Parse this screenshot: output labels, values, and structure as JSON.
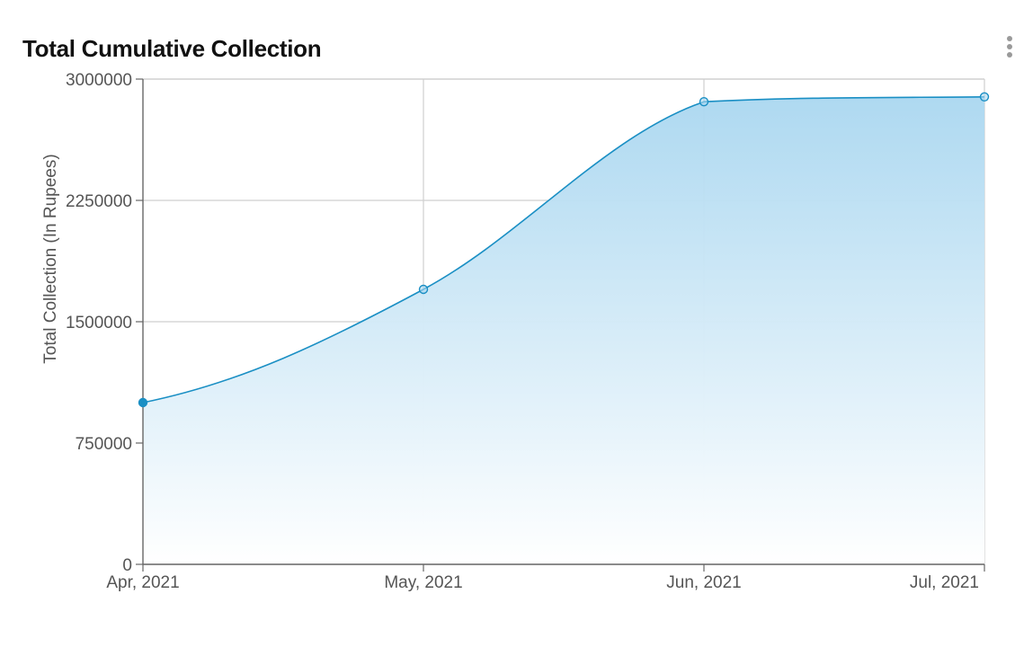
{
  "header": {
    "title": "Total Cumulative Collection",
    "menu_icon": "more-vertical-icon"
  },
  "chart_data": {
    "type": "area",
    "title": "Total Cumulative Collection",
    "xlabel": "",
    "ylabel": "Total Collection (In Rupees)",
    "categories": [
      "Apr, 2021",
      "May, 2021",
      "Jun, 2021",
      "Jul, 2021"
    ],
    "series": [
      {
        "values": [
          1000000,
          1700000,
          2860000,
          2890000
        ]
      }
    ],
    "ylim": [
      0,
      3000000
    ],
    "yticks": [
      0,
      750000,
      1500000,
      2250000,
      3000000
    ],
    "grid": true,
    "colors": {
      "line": "#1a8fc4",
      "fill_top": "#aad7f0",
      "fill_bottom": "#ffffff",
      "point_filled": "#1a8fc4"
    }
  }
}
